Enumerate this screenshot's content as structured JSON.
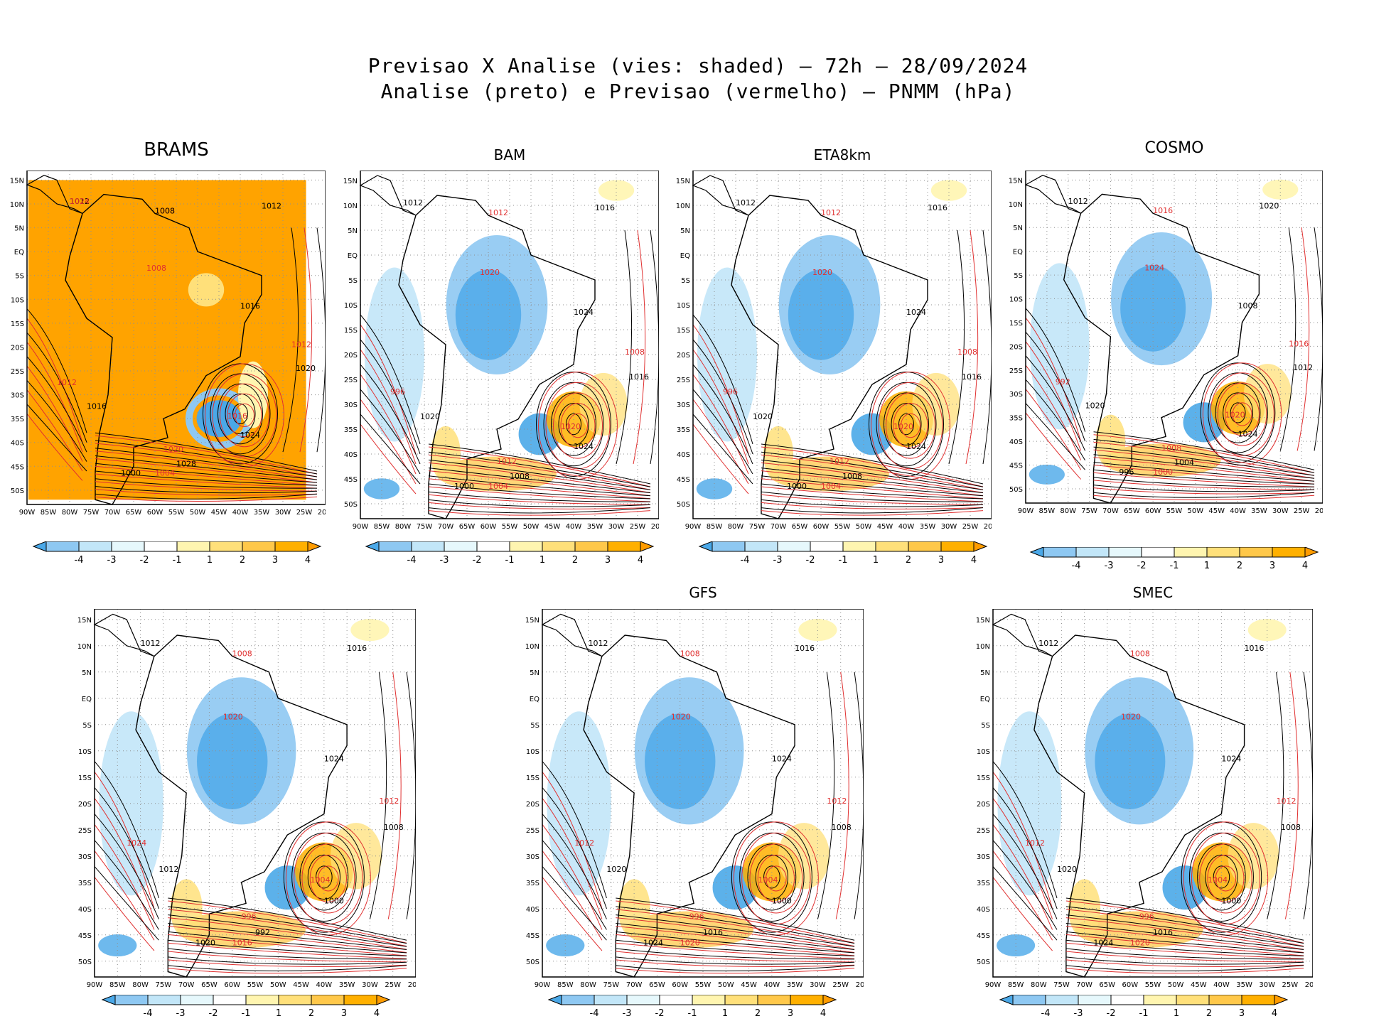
{
  "header": {
    "line1": "Previsao X Analise (vies: shaded) – 72h – 28/09/2024",
    "line2": "Analise (preto) e Previsao (vermelho) – PNMM (hPa)"
  },
  "axes": {
    "lat_labels": [
      "15N",
      "10N",
      "5N",
      "EQ",
      "5S",
      "10S",
      "15S",
      "20S",
      "25S",
      "30S",
      "35S",
      "40S",
      "45S",
      "50S"
    ],
    "lon_labels": [
      "90W",
      "85W",
      "80W",
      "75W",
      "70W",
      "65W",
      "60W",
      "55W",
      "50W",
      "45W",
      "40W",
      "35W",
      "30W",
      "25W",
      "20W"
    ]
  },
  "colorbar": {
    "labels": [
      "-4",
      "-3",
      "-2",
      "-1",
      "1",
      "2",
      "3",
      "4"
    ],
    "colors": [
      "#4aa8e8",
      "#8ec8f2",
      "#c2e6f8",
      "#e6f8fc",
      "#ffffff",
      "#fff5b0",
      "#ffe07a",
      "#ffc84a",
      "#ffb000",
      "#ff9c00"
    ]
  },
  "panels": [
    {
      "id": "brams",
      "title": "BRAMS",
      "contours": [
        "1012",
        "1008",
        "1012",
        "1008",
        "1016",
        "1012",
        "1020",
        "1016",
        "1024",
        "1020",
        "1028",
        "1004",
        "1000",
        "1012",
        "1016",
        "1024",
        "1008"
      ]
    },
    {
      "id": "bam",
      "title": "BAM",
      "contours": [
        "1012",
        "1012",
        "1016",
        "1020",
        "1024",
        "1008",
        "1016",
        "1020",
        "1024",
        "1012",
        "1008",
        "1004",
        "1000",
        "996",
        "1020"
      ]
    },
    {
      "id": "eta8km",
      "title": "ETA8km",
      "contours": [
        "1012",
        "1012",
        "1016",
        "1020",
        "1024",
        "1008",
        "1016",
        "1020",
        "1024",
        "1012",
        "1008",
        "1004",
        "1000",
        "996",
        "1020"
      ]
    },
    {
      "id": "cosmo",
      "title": "COSMO",
      "contours": [
        "1012",
        "1016",
        "1020",
        "1024",
        "1008",
        "1016",
        "1012",
        "1020",
        "1024",
        "1008",
        "1004",
        "1000",
        "996",
        "992",
        "1020"
      ]
    },
    {
      "id": "p5",
      "title": "",
      "contours": [
        "1012",
        "1008",
        "1016",
        "1020",
        "1024",
        "1012",
        "1008",
        "1004",
        "1000",
        "996",
        "992",
        "1016",
        "1020",
        "1024",
        "1012"
      ]
    },
    {
      "id": "gfs",
      "title": "GFS",
      "contours": [
        "1012",
        "1008",
        "1016",
        "1020",
        "1024",
        "1012",
        "1008",
        "1004",
        "1000",
        "996",
        "1016",
        "1020",
        "1024",
        "1012",
        "1020"
      ]
    },
    {
      "id": "smec",
      "title": "SMEC",
      "contours": [
        "1012",
        "1008",
        "1016",
        "1020",
        "1024",
        "1012",
        "1008",
        "1004",
        "1000",
        "996",
        "1016",
        "1020",
        "1024",
        "1012",
        "1020"
      ]
    }
  ]
}
